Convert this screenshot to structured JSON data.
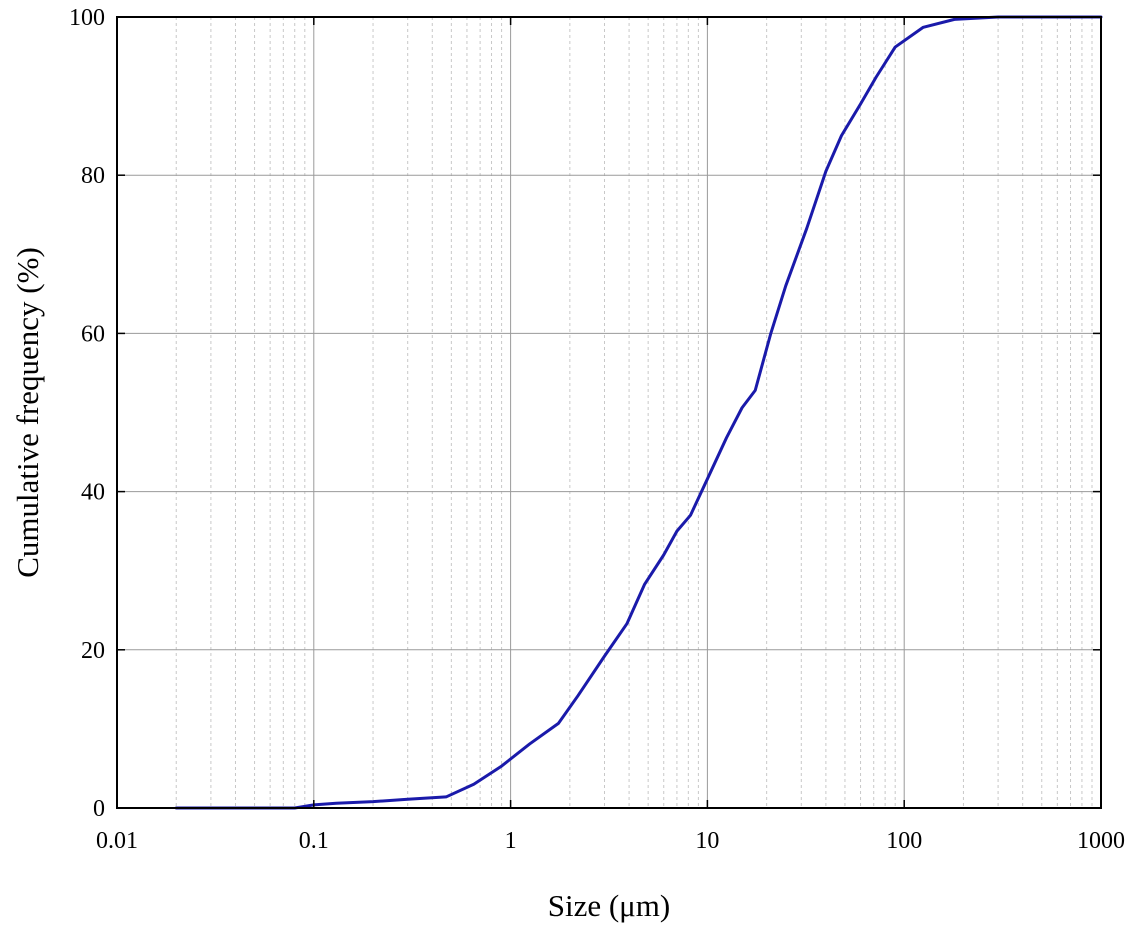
{
  "chart_data": {
    "type": "line",
    "title": "",
    "xlabel": "Size (μm)",
    "ylabel": "Cumulative frequency (%)",
    "xscale": "log",
    "xlim": [
      0.01,
      1000
    ],
    "ylim": [
      0,
      100
    ],
    "xticks": [
      0.01,
      0.1,
      1,
      10,
      100,
      1000
    ],
    "xtick_labels": [
      "0.01",
      "0.1",
      "1",
      "10",
      "100",
      "1000"
    ],
    "yticks": [
      0,
      20,
      40,
      60,
      80,
      100
    ],
    "ytick_labels": [
      "0",
      "20",
      "40",
      "60",
      "80",
      "100"
    ],
    "grid": true,
    "minor_grid_x": true,
    "series": [
      {
        "color": "#1a1aaa",
        "x": [
          0.02,
          0.05,
          0.08,
          0.1,
          0.13,
          0.2,
          0.3,
          0.47,
          0.65,
          0.9,
          1.25,
          1.75,
          2.2,
          3.0,
          3.9,
          4.8,
          6.0,
          7.0,
          8.2,
          10.0,
          12.5,
          15.0,
          17.5,
          21.0,
          25.0,
          32.0,
          40.0,
          48.0,
          60.0,
          72.0,
          90.0,
          125.0,
          180.0,
          300.0,
          1000.0
        ],
        "y": [
          0.0,
          0.0,
          0.0,
          0.4,
          0.6,
          0.8,
          1.1,
          1.4,
          3.0,
          5.3,
          8.1,
          10.7,
          14.2,
          19.2,
          23.3,
          28.3,
          32.0,
          35.0,
          37.0,
          41.6,
          46.8,
          50.6,
          52.8,
          60.0,
          66.0,
          73.3,
          80.5,
          85.0,
          89.0,
          92.4,
          96.2,
          98.7,
          99.7,
          100.0,
          100.0
        ]
      }
    ]
  }
}
